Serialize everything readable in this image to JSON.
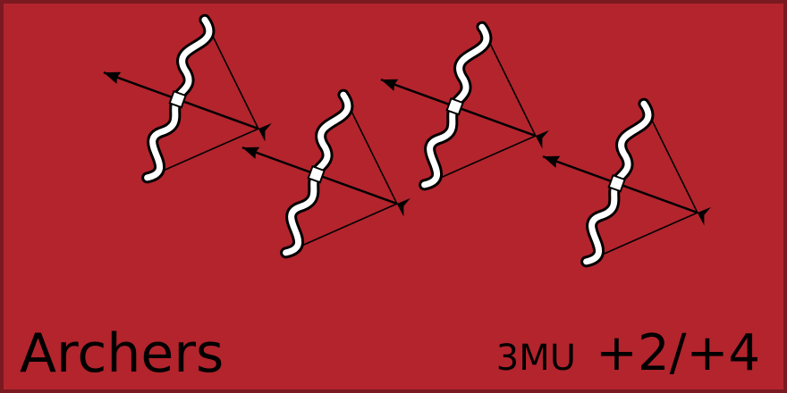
{
  "card": {
    "unit_name": "Archers",
    "movement": "3MU",
    "modifiers": "+2/+4",
    "background_color": "#b3242d",
    "border_color": "#7a1a20",
    "icon": "bow-and-arrow-icon",
    "icon_count": 4
  }
}
